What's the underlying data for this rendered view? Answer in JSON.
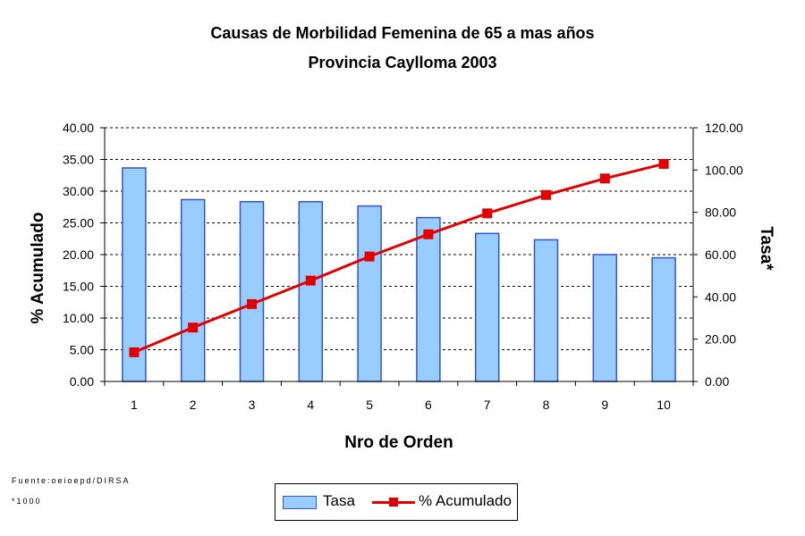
{
  "chart_data": {
    "type": "bar",
    "title": "Causas de Morbilidad Femenina de 65 a mas años",
    "subtitle": "Provincia Caylloma 2003",
    "xlabel": "Nro de Orden",
    "ylabel_left": "% Acumulado",
    "ylabel_right": "Tasa*",
    "categories": [
      "1",
      "2",
      "3",
      "4",
      "5",
      "6",
      "7",
      "8",
      "9",
      "10"
    ],
    "y_left_ticks": [
      "0.00",
      "5.00",
      "10.00",
      "15.00",
      "20.00",
      "25.00",
      "30.00",
      "35.00",
      "40.00"
    ],
    "y_right_ticks": [
      "0.00",
      "20.00",
      "40.00",
      "60.00",
      "80.00",
      "100.00",
      "120.00"
    ],
    "ylim_left": [
      0,
      40
    ],
    "ylim_right": [
      0,
      120
    ],
    "grid": "horizontal dashed",
    "legend_position": "bottom-center",
    "series": [
      {
        "name": "Tasa",
        "type": "bar",
        "axis": "right",
        "color": "#99ccff",
        "edge_color": "#3355cc",
        "values": [
          101.0,
          86.0,
          85.0,
          85.0,
          83.0,
          77.5,
          70.0,
          67.0,
          60.0,
          58.5
        ]
      },
      {
        "name": "% Acumulado",
        "type": "line",
        "axis": "left",
        "color": "#e00000",
        "marker": "square",
        "values": [
          4.6,
          8.5,
          12.2,
          15.9,
          19.7,
          23.2,
          26.5,
          29.4,
          32.0,
          34.3
        ]
      }
    ]
  },
  "footnotes": {
    "source": "Fuente:oeioepd/DIRSA",
    "rate": "*1000"
  },
  "legend": {
    "bar_label": "Tasa",
    "line_label": "% Acumulado"
  }
}
